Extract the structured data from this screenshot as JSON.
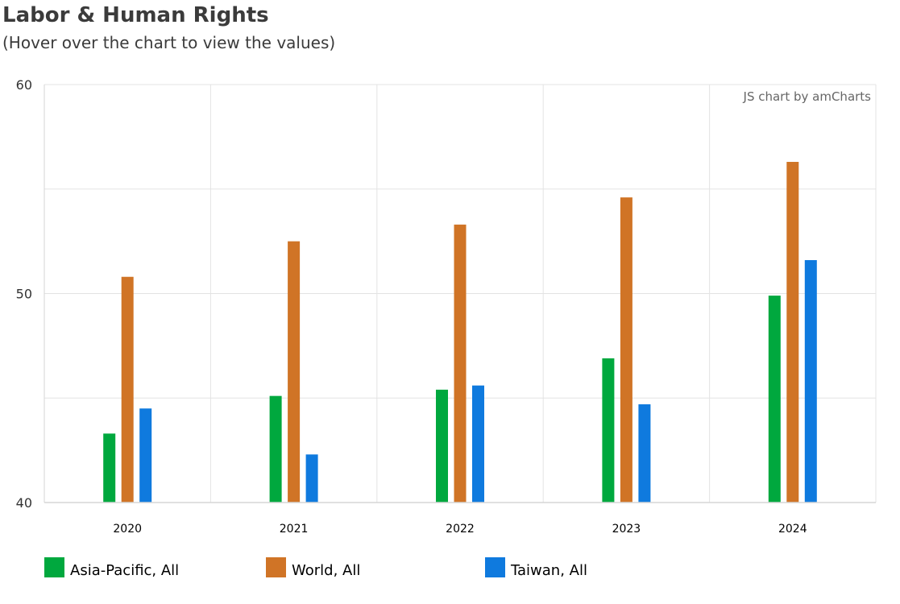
{
  "header": {
    "title": "Labor & Human Rights",
    "subtitle": "(Hover over the chart to view the values)"
  },
  "credit": "JS chart by amCharts",
  "chart_data": {
    "type": "bar",
    "categories": [
      "2020",
      "2021",
      "2022",
      "2023",
      "2024"
    ],
    "series": [
      {
        "name": "Asia-Pacific, All",
        "color": "#00a83e",
        "values": [
          43.3,
          45.1,
          45.4,
          46.9,
          49.9
        ]
      },
      {
        "name": "World, All",
        "color": "#d07426",
        "values": [
          50.8,
          52.5,
          53.3,
          54.6,
          56.3
        ]
      },
      {
        "name": "Taiwan, All",
        "color": "#0f7ade",
        "values": [
          44.5,
          42.3,
          45.6,
          44.7,
          51.6
        ]
      }
    ],
    "ylim": [
      40,
      60
    ],
    "yticks": [
      40,
      50,
      60
    ],
    "grid": true,
    "legend_position": "bottom"
  }
}
